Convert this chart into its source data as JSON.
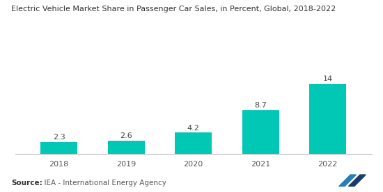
{
  "title": "Electric Vehicle Market Share in Passenger Car Sales, in Percent, Global, 2018-2022",
  "categories": [
    "2018",
    "2019",
    "2020",
    "2021",
    "2022"
  ],
  "values": [
    2.3,
    2.6,
    4.2,
    8.7,
    14
  ],
  "bar_color": "#00C8B4",
  "background_color": "#ffffff",
  "ylim": [
    0,
    20
  ],
  "source_bold": "Source:",
  "source_text": "  IEA - International Energy Agency",
  "title_fontsize": 8.0,
  "label_fontsize": 8.0,
  "tick_fontsize": 8.0,
  "source_fontsize": 7.5,
  "bar_width": 0.55
}
